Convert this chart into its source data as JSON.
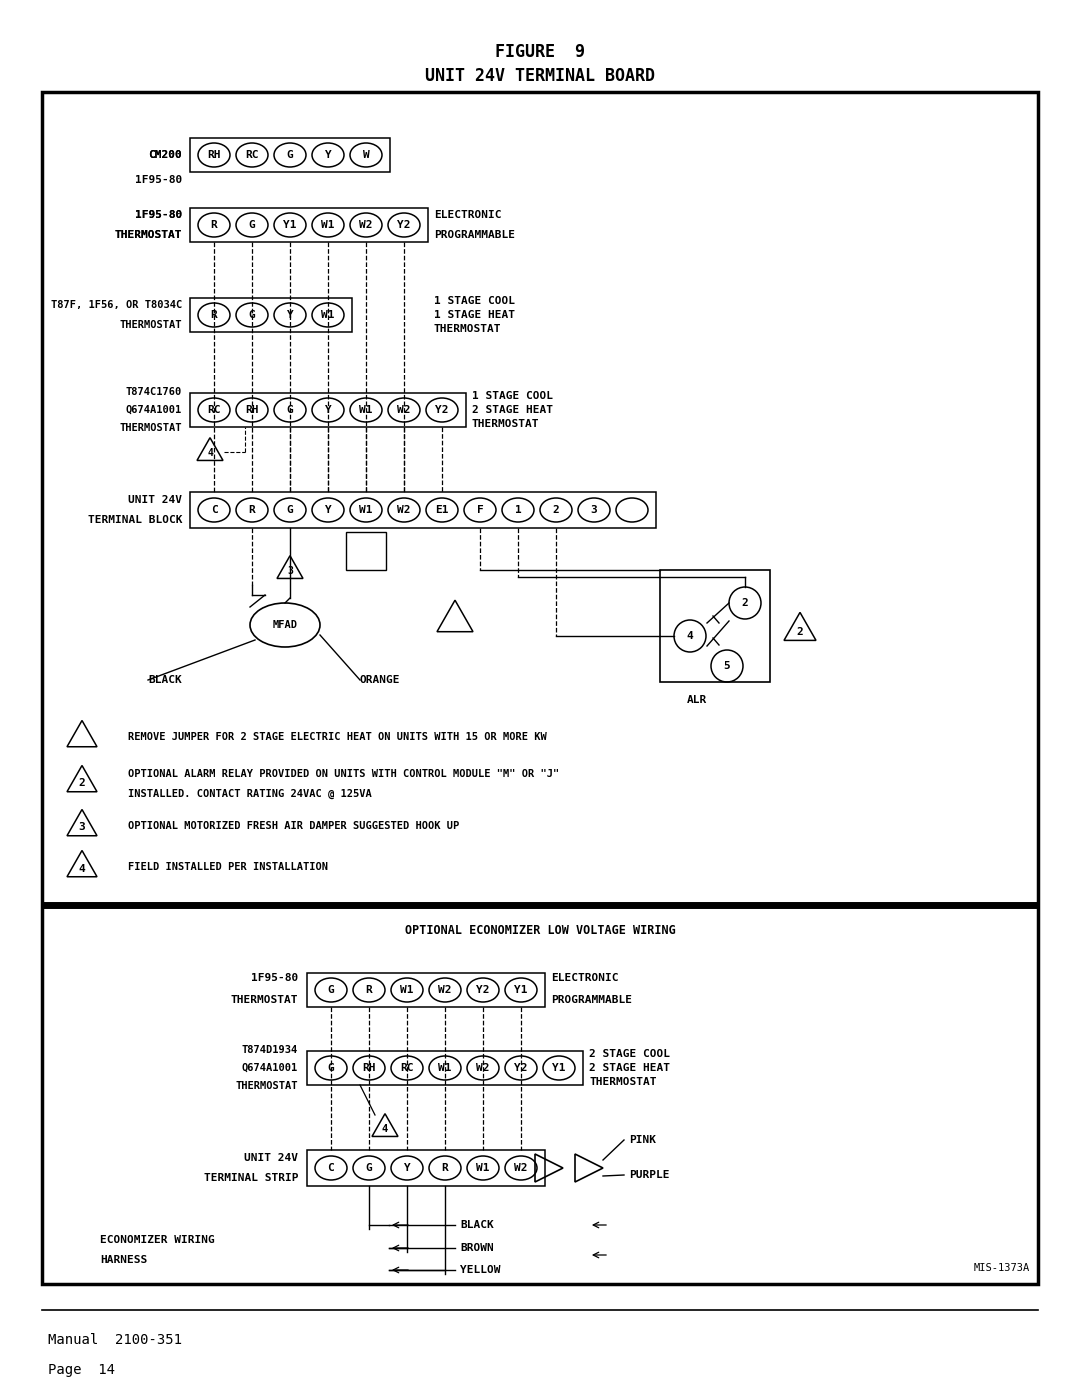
{
  "title_line1": "FIGURE  9",
  "title_line2": "UNIT 24V TERMINAL BOARD",
  "bg_color": "#ffffff",
  "text_color": "#000000",
  "footer_line1": "Manual  2100-351",
  "footer_line2": "Page  14",
  "ref_code": "MIS-1373A",
  "fig_width": 10.8,
  "fig_height": 13.97
}
